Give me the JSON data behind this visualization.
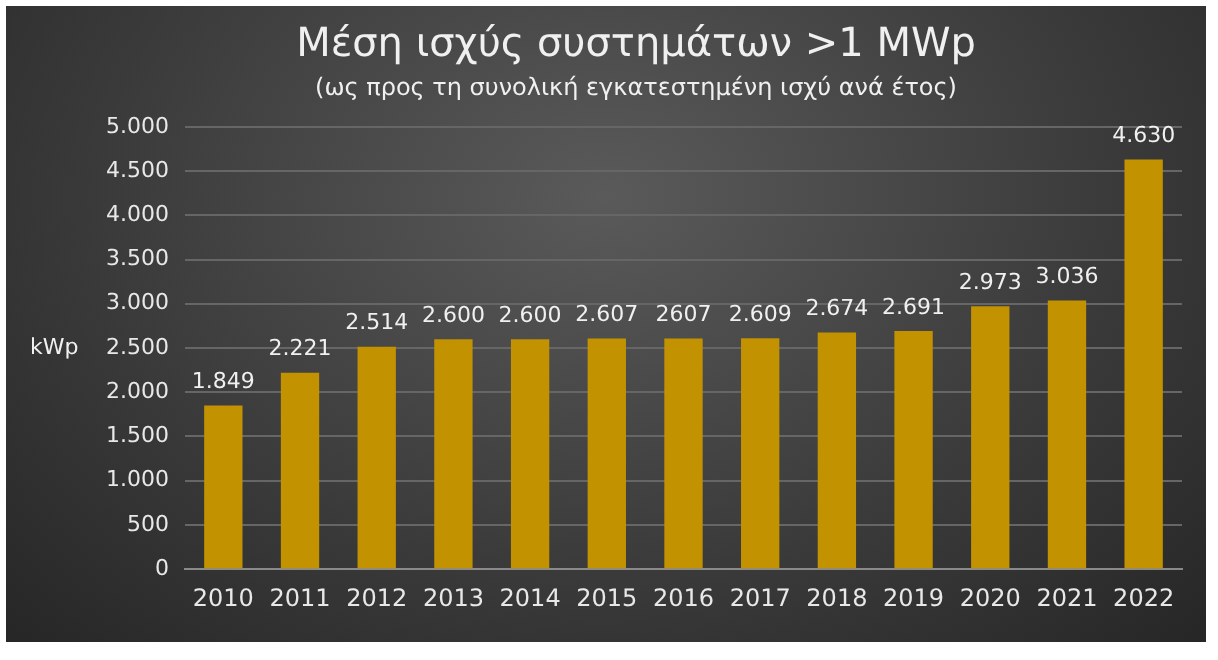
{
  "chart_data": {
    "type": "bar",
    "title": "Μέση ισχύς συστημάτων >1 MWp",
    "subtitle": "(ως προς τη συνολική εγκατεστημένη ισχύ ανά έτος)",
    "ylabel": "kWp",
    "categories": [
      "2010",
      "2011",
      "2012",
      "2013",
      "2014",
      "2015",
      "2016",
      "2017",
      "2018",
      "2019",
      "2020",
      "2021",
      "2022"
    ],
    "values": [
      1849,
      2221,
      2514,
      2600,
      2600,
      2607,
      2607,
      2609,
      2674,
      2691,
      2973,
      3036,
      4630
    ],
    "value_labels": [
      "1.849",
      "2.221",
      "2.514",
      "2.600",
      "2.600",
      "2.607",
      "2607",
      "2.609",
      "2.674",
      "2.691",
      "2.973",
      "3.036",
      "4.630"
    ],
    "color": "#c29200",
    "ylim": [
      0,
      5000
    ],
    "yticks": [
      0,
      500,
      {
        "value": 1000,
        "label": "1.000"
      },
      {
        "value": 1500,
        "label": "1.500"
      },
      {
        "value": 2000,
        "label": "2.000"
      },
      {
        "value": 2500,
        "label": "2.500"
      },
      {
        "value": 3000,
        "label": "3.000"
      },
      {
        "value": 3500,
        "label": "3.500"
      },
      {
        "value": 4000,
        "label": "4.000"
      },
      {
        "value": 4500,
        "label": "4.500"
      },
      {
        "value": 5000,
        "label": "5.000"
      }
    ],
    "grid": "y",
    "legend": false
  }
}
